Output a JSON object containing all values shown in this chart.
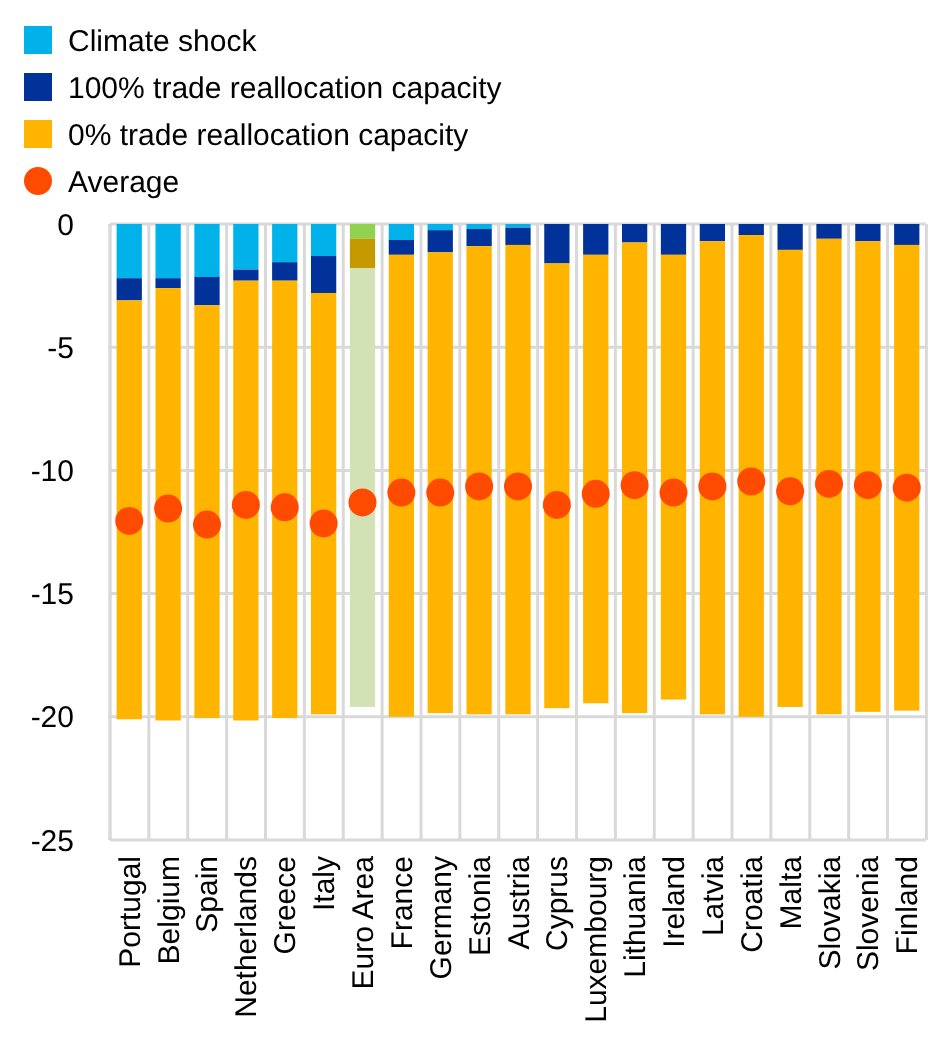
{
  "chart_data": {
    "type": "bar",
    "stacked": true,
    "categories": [
      "Portugal",
      "Belgium",
      "Spain",
      "Netherlands",
      "Greece",
      "Italy",
      "Euro Area",
      "France",
      "Germany",
      "Estonia",
      "Austria",
      "Cyprus",
      "Luxembourg",
      "Lithuania",
      "Ireland",
      "Latvia",
      "Croatia",
      "Malta",
      "Slovakia",
      "Slovenia",
      "Finland"
    ],
    "series": [
      {
        "name": "Climate shock",
        "color": "#00b1ea",
        "colors": [
          "#00b1ea",
          "#00b1ea",
          "#00b1ea",
          "#00b1ea",
          "#00b1ea",
          "#00b1ea",
          "#92d050",
          "#00b1ea",
          "#00b1ea",
          "#00b1ea",
          "#00b1ea",
          "#00b1ea",
          "#00b1ea",
          "#00b1ea",
          "#00b1ea",
          "#00b1ea",
          "#00b1ea",
          "#00b1ea",
          "#00b1ea",
          "#00b1ea",
          "#00b1ea"
        ],
        "values": [
          -2.2,
          -2.2,
          -2.15,
          -1.85,
          -1.55,
          -1.3,
          -0.6,
          -0.65,
          -0.25,
          -0.2,
          -0.15,
          0,
          0,
          0,
          0,
          0,
          0,
          0,
          0,
          0,
          0
        ]
      },
      {
        "name": "100% trade reallocation capacity",
        "color": "#003299",
        "colors": [
          "#003299",
          "#003299",
          "#003299",
          "#003299",
          "#003299",
          "#003299",
          "#c49a00",
          "#003299",
          "#003299",
          "#003299",
          "#003299",
          "#003299",
          "#003299",
          "#003299",
          "#003299",
          "#003299",
          "#003299",
          "#003299",
          "#003299",
          "#003299",
          "#003299"
        ],
        "values": [
          -0.9,
          -0.4,
          -1.15,
          -0.45,
          -0.75,
          -1.5,
          -1.2,
          -0.6,
          -0.9,
          -0.7,
          -0.7,
          -1.6,
          -1.25,
          -0.75,
          -1.25,
          -0.7,
          -0.45,
          -1.05,
          -0.6,
          -0.7,
          -0.85
        ]
      },
      {
        "name": "0% trade reallocation capacity",
        "color": "#ffb400",
        "colors": [
          "#ffb400",
          "#ffb400",
          "#ffb400",
          "#ffb400",
          "#ffb400",
          "#ffb400",
          "#d3e2b4",
          "#ffb400",
          "#ffb400",
          "#ffb400",
          "#ffb400",
          "#ffb400",
          "#ffb400",
          "#ffb400",
          "#ffb400",
          "#ffb400",
          "#ffb400",
          "#ffb400",
          "#ffb400",
          "#ffb400",
          "#ffb400"
        ],
        "values": [
          -17.0,
          -17.55,
          -16.75,
          -17.85,
          -17.75,
          -17.1,
          -17.8,
          -18.75,
          -18.7,
          -19.0,
          -19.05,
          -18.05,
          -18.2,
          -19.1,
          -18.05,
          -19.2,
          -19.55,
          -18.55,
          -19.3,
          -19.1,
          -18.9
        ]
      },
      {
        "name": "Average",
        "type": "scatter",
        "color": "#ff4b00",
        "marker": "circle",
        "x": [
          "Portugal",
          "Belgium",
          "Spain",
          "Netherlands",
          "Greece",
          "Italy",
          "Euro Area",
          "France",
          "Germany",
          "Estonia",
          "Austria",
          "Cyprus",
          "Luxembourg",
          "Lithuania",
          "Ireland",
          "Latvia",
          "Croatia",
          "Malta",
          "Slovakia",
          "Slovenia",
          "Finland"
        ],
        "values": [
          -12.05,
          -11.55,
          -12.2,
          -11.4,
          -11.5,
          -12.15,
          -11.3,
          -10.9,
          -10.9,
          -10.65,
          -10.65,
          -11.4,
          -10.95,
          -10.6,
          -10.9,
          -10.65,
          -10.45,
          -10.85,
          -10.55,
          -10.6,
          -10.7
        ]
      }
    ],
    "ylim": [
      -25,
      0
    ],
    "yticks": [
      -25,
      -20,
      -15,
      -10,
      -5,
      0
    ],
    "grid": true,
    "legend": "top left"
  }
}
